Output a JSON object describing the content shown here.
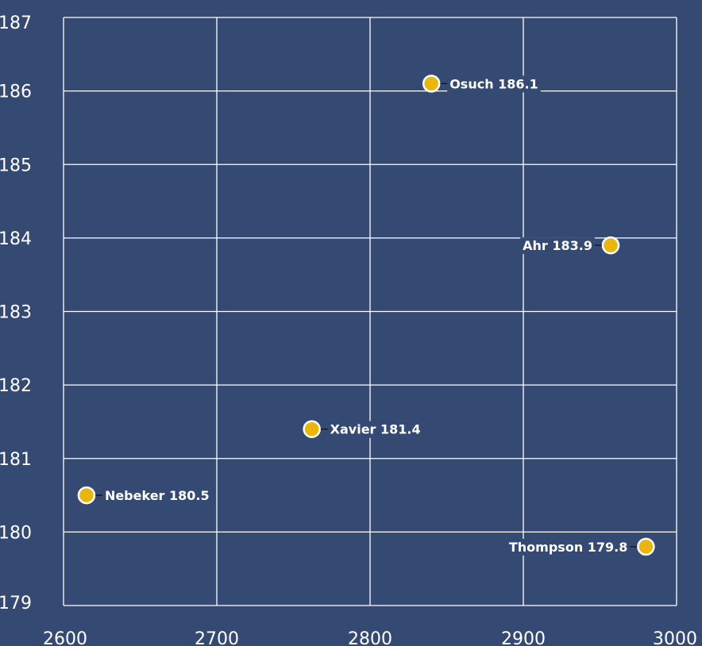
{
  "chart_data": {
    "type": "scatter",
    "title": "",
    "xlabel": "",
    "ylabel": "",
    "xlim": [
      2600,
      3000
    ],
    "ylim": [
      179,
      187
    ],
    "x_ticks": [
      "2600",
      "2700",
      "2800",
      "2900",
      "3000"
    ],
    "y_ticks": [
      "179",
      "180",
      "181",
      "182",
      "183",
      "184",
      "185",
      "186",
      "187"
    ],
    "grid": true,
    "colors": {
      "background": "#354a72",
      "grid": "#ffffff",
      "point": "#e8b60c",
      "point_stroke": "#ffffff"
    },
    "points": [
      {
        "name": "Osuch",
        "x": 2840,
        "y": 186.1,
        "label": "Osuch 186.1",
        "label_side": "right"
      },
      {
        "name": "Ahr",
        "x": 2957,
        "y": 183.9,
        "label": "Ahr 183.9",
        "label_side": "left"
      },
      {
        "name": "Xavier",
        "x": 2762,
        "y": 181.4,
        "label": "Xavier 181.4",
        "label_side": "right"
      },
      {
        "name": "Nebeker",
        "x": 2615,
        "y": 180.5,
        "label": "Nebeker 180.5",
        "label_side": "right"
      },
      {
        "name": "Thompson",
        "x": 2980,
        "y": 179.8,
        "label": "Thompson 179.8",
        "label_side": "left"
      }
    ]
  }
}
